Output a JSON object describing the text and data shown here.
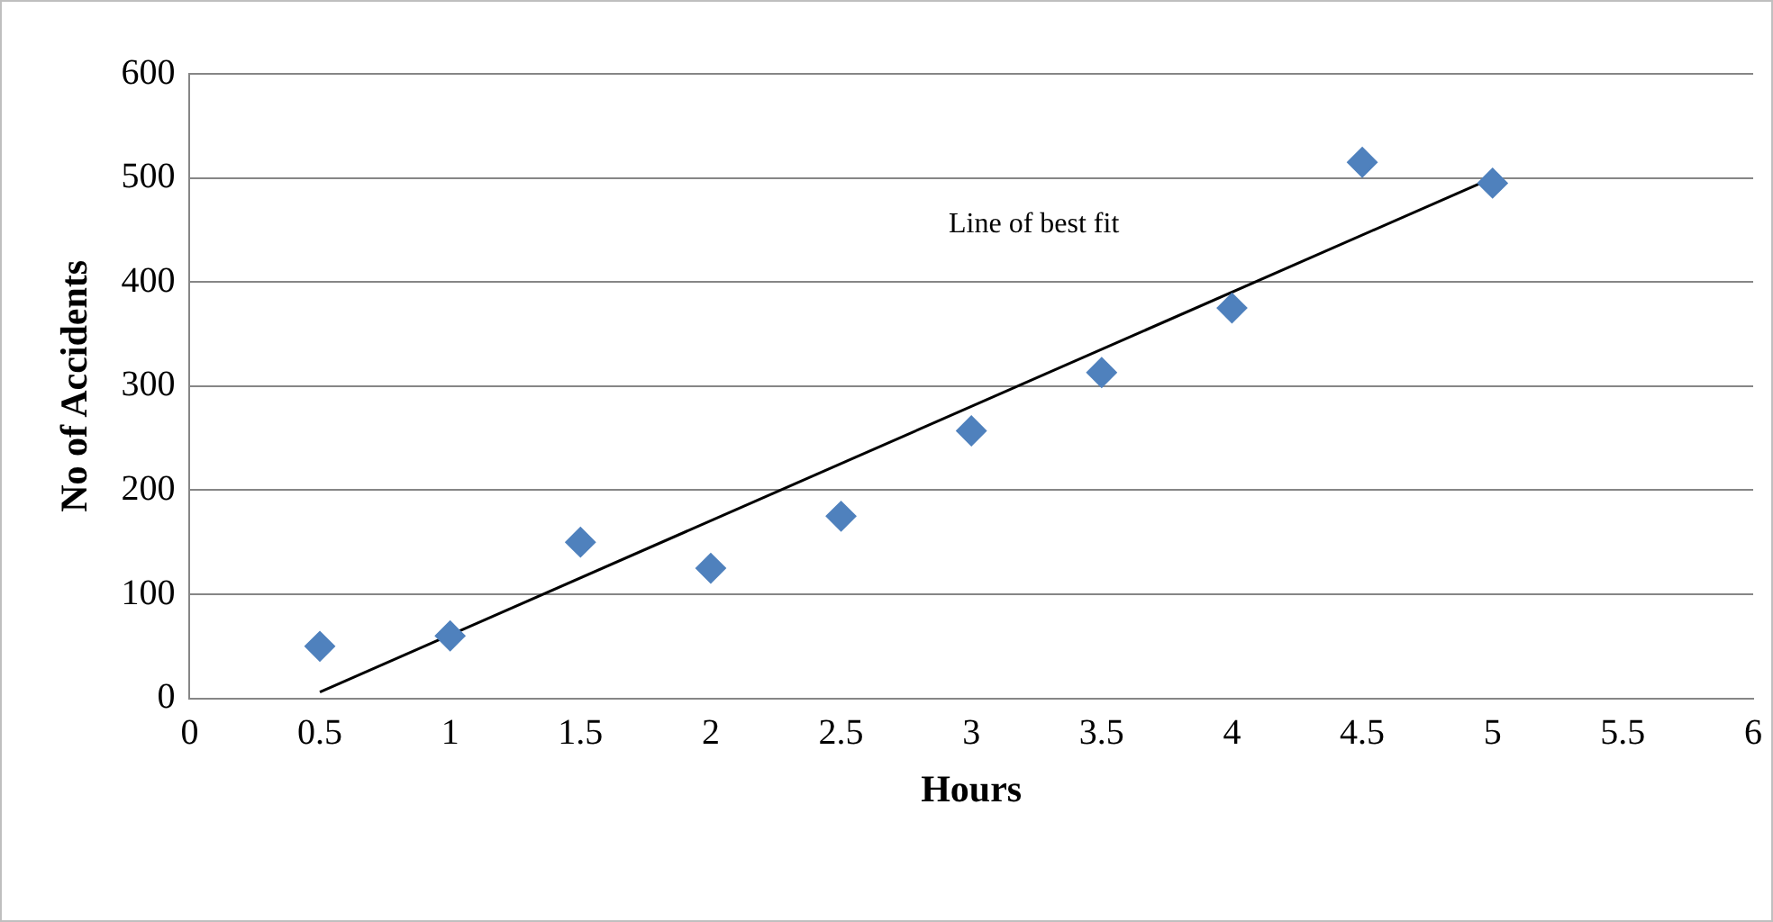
{
  "chart_data": {
    "type": "scatter",
    "xlabel": "Hours",
    "ylabel": "No of Accidents",
    "xlim": [
      0,
      6
    ],
    "xticks": [
      0,
      0.5,
      1,
      1.5,
      2,
      2.5,
      3,
      3.5,
      4,
      4.5,
      5,
      5.5,
      6
    ],
    "ylim": [
      0,
      600
    ],
    "yticks": [
      0,
      100,
      200,
      300,
      400,
      500,
      600
    ],
    "grid": "y",
    "legend": false,
    "series": [
      {
        "color": "#4f81bd",
        "marker": "diamond",
        "x": [
          0.5,
          1,
          1.5,
          2,
          2.5,
          3,
          3.5,
          4,
          4.5,
          5
        ],
        "values": [
          50,
          60,
          150,
          125,
          175,
          257,
          313,
          375,
          515,
          495
        ]
      },
      {
        "type": "line",
        "color": "#000000",
        "marker": "none",
        "x": [
          0.5,
          5
        ],
        "values": [
          6,
          500
        ]
      }
    ],
    "annotations": [
      "Line of best fit"
    ]
  }
}
